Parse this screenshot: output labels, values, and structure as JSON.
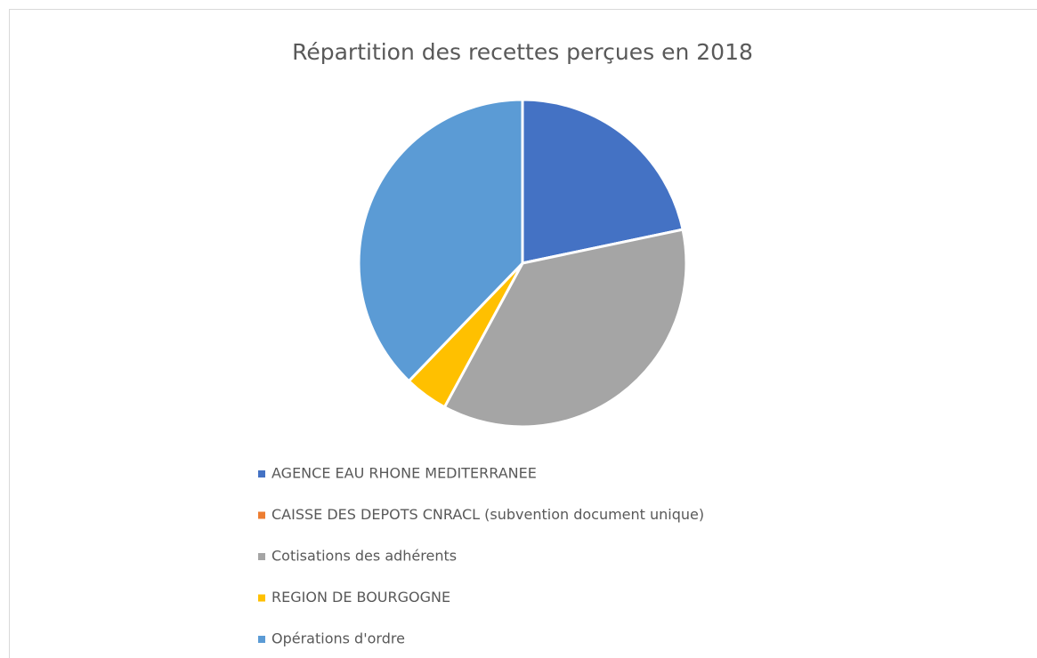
{
  "chart_data": {
    "type": "pie",
    "title": "Répartition des recettes perçues en 2018",
    "categories": [
      "AGENCE EAU RHONE MEDITERRANEE",
      "CAISSE DES DEPOTS CNRACL  (subvention document unique)",
      "Cotisations des adhérents",
      "REGION DE BOURGOGNE",
      "Opérations d'ordre"
    ],
    "values": [
      21.7,
      0,
      36.2,
      4.3,
      37.8
    ],
    "colors": [
      "#4472c4",
      "#ed7d31",
      "#a5a5a5",
      "#ffc000",
      "#5b9bd5"
    ],
    "legend": "bottom"
  }
}
